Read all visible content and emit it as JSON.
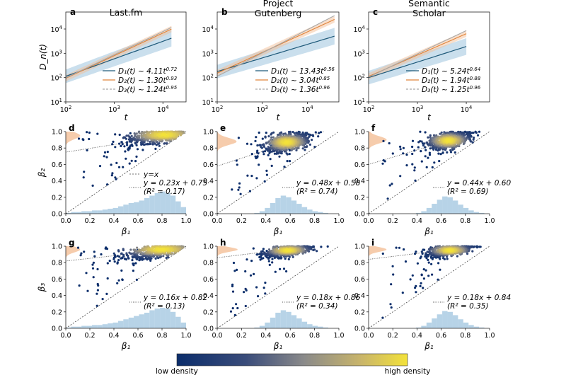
{
  "figure": {
    "colorbar": {
      "low_label": "low density",
      "high_label": "high density",
      "colors": [
        "#0b2d6b",
        "#3a4c7a",
        "#8a8a8a",
        "#c9b56a",
        "#f3e23a"
      ]
    },
    "colors": {
      "D1": "#1f5a7a",
      "D2": "#e0843a",
      "D3": "#a8a8a8",
      "band_blue": "#9fc4df",
      "band_orange": "#f4bf97",
      "hist_blue": "#9fc4df",
      "hist_orange": "#f4bf97"
    }
  },
  "chart_data": [
    {
      "type": "line",
      "panel": "a",
      "title": "Last.fm",
      "ylabel": "D_n(t)",
      "xlabel": "t",
      "xscale": "log",
      "yscale": "log",
      "xlim": [
        100,
        30000
      ],
      "ylim": [
        10,
        50000
      ],
      "x_ticks": [
        "10^2",
        "10^3",
        "10^4"
      ],
      "y_ticks": [
        "10^1",
        "10^2",
        "10^3",
        "10^4"
      ],
      "x_range": [
        100,
        15000
      ],
      "series": [
        {
          "key": "D1",
          "legend": "D₁(t) ~ 4.11t^0.72",
          "a": 4.11,
          "b": 0.72
        },
        {
          "key": "D2",
          "legend": "D₂(t) ~ 1.30t^0.93",
          "a": 1.3,
          "b": 0.93
        },
        {
          "key": "D3",
          "legend": "D₃(t) ~ 1.24t^0.95",
          "a": 1.24,
          "b": 0.95
        }
      ]
    },
    {
      "type": "line",
      "panel": "b",
      "title_lines": [
        "Project",
        "Gutenberg"
      ],
      "xlabel": "t",
      "xscale": "log",
      "yscale": "log",
      "xlim": [
        100,
        50000
      ],
      "ylim": [
        10,
        50000
      ],
      "x_ticks": [
        "10^2",
        "10^3",
        "10^4"
      ],
      "y_ticks": [
        "10^1",
        "10^2",
        "10^3",
        "10^4"
      ],
      "x_range": [
        100,
        40000
      ],
      "series": [
        {
          "key": "D1",
          "legend": "D₁(t) ~ 13.43t^0.56",
          "a": 13.43,
          "b": 0.56
        },
        {
          "key": "D2",
          "legend": "D₂(t) ~ 3.04t^0.85",
          "a": 3.04,
          "b": 0.85
        },
        {
          "key": "D3",
          "legend": "D₃(t) ~ 1.36t^0.96",
          "a": 1.36,
          "b": 0.96
        }
      ]
    },
    {
      "type": "line",
      "panel": "c",
      "title_lines": [
        "Semantic",
        "Scholar"
      ],
      "xlabel": "t",
      "xscale": "log",
      "yscale": "log",
      "xlim": [
        100,
        30000
      ],
      "ylim": [
        10,
        50000
      ],
      "x_ticks": [
        "10^2",
        "10^3",
        "10^4"
      ],
      "y_ticks": [
        "10^1",
        "10^2",
        "10^3",
        "10^4"
      ],
      "x_range": [
        100,
        10000
      ],
      "series": [
        {
          "key": "D1",
          "legend": "D₁(t) ~ 5.24t^0.64",
          "a": 5.24,
          "b": 0.64
        },
        {
          "key": "D2",
          "legend": "D₂(t) ~ 1.94t^0.88",
          "a": 1.94,
          "b": 0.88
        },
        {
          "key": "D3",
          "legend": "D₃(t) ~ 1.25t^0.96",
          "a": 1.25,
          "b": 0.96
        }
      ]
    },
    {
      "type": "scatter",
      "panel": "d",
      "ylabel": "β₂",
      "xlabel": "β₁",
      "xlim": [
        0,
        1
      ],
      "ylim": [
        0,
        1
      ],
      "x_ticks": [
        "0.0",
        "0.2",
        "0.4",
        "0.6",
        "0.8",
        "1.0"
      ],
      "y_ticks": [
        "0.0",
        "0.2",
        "0.4",
        "0.6",
        "0.8",
        "1.0"
      ],
      "fit": {
        "slope": 0.23,
        "intercept": 0.75
      },
      "fit_label": "y = 0.23x + 0.75",
      "r2_label": "(R² = 0.17)",
      "diag_label": "y=x",
      "cluster": {
        "cx": 0.82,
        "cy": 0.96,
        "sx": 0.15,
        "sy": 0.05
      },
      "hist_x": [
        0.01,
        0.02,
        0.02,
        0.03,
        0.03,
        0.04,
        0.04,
        0.05,
        0.06,
        0.07,
        0.09,
        0.11,
        0.13,
        0.14,
        0.16,
        0.19,
        0.22,
        0.25,
        0.27,
        0.25,
        0.22,
        0.15,
        0.08
      ],
      "hist_y_profile": {
        "center": 0.95,
        "width": 0.06,
        "height": 0.12
      }
    },
    {
      "type": "scatter",
      "panel": "e",
      "xlabel": "β₁",
      "xlim": [
        0,
        1
      ],
      "ylim": [
        0,
        1
      ],
      "x_ticks": [
        "0.0",
        "0.2",
        "0.4",
        "0.6",
        "0.8",
        "1.0"
      ],
      "y_ticks": [
        "0.0",
        "0.2",
        "0.4",
        "0.6",
        "0.8",
        "1.0"
      ],
      "fit": {
        "slope": 0.48,
        "intercept": 0.58
      },
      "fit_label": "y = 0.48x + 0.58",
      "r2_label": "(R² = 0.74)",
      "cluster": {
        "cx": 0.57,
        "cy": 0.87,
        "sx": 0.09,
        "sy": 0.055
      },
      "hist_x": [
        0,
        0,
        0,
        0,
        0,
        0,
        0,
        0.01,
        0.03,
        0.07,
        0.13,
        0.19,
        0.22,
        0.2,
        0.16,
        0.12,
        0.08,
        0.05,
        0.03,
        0.02,
        0.01,
        0,
        0
      ],
      "hist_y_profile": {
        "center": 0.88,
        "width": 0.06,
        "height": 0.16
      }
    },
    {
      "type": "scatter",
      "panel": "f",
      "xlabel": "β₁",
      "xlim": [
        0,
        1
      ],
      "ylim": [
        0,
        1
      ],
      "x_ticks": [
        "0.0",
        "0.2",
        "0.4",
        "0.6",
        "0.8",
        "1.0"
      ],
      "y_ticks": [
        "0.0",
        "0.2",
        "0.4",
        "0.6",
        "0.8",
        "1.0"
      ],
      "fit": {
        "slope": 0.44,
        "intercept": 0.6
      },
      "fit_label": "y = 0.44x + 0.60",
      "r2_label": "(R² = 0.69)",
      "cluster": {
        "cx": 0.66,
        "cy": 0.89,
        "sx": 0.085,
        "sy": 0.05
      },
      "hist_x": [
        0,
        0,
        0,
        0,
        0,
        0,
        0,
        0,
        0,
        0.01,
        0.03,
        0.07,
        0.12,
        0.17,
        0.21,
        0.2,
        0.16,
        0.11,
        0.07,
        0.04,
        0.02,
        0.01,
        0
      ],
      "hist_y_profile": {
        "center": 0.9,
        "width": 0.06,
        "height": 0.15
      }
    },
    {
      "type": "scatter",
      "panel": "g",
      "ylabel": "β₃",
      "xlabel": "β₁",
      "xlim": [
        0,
        1
      ],
      "ylim": [
        0,
        1
      ],
      "x_ticks": [
        "0.0",
        "0.2",
        "0.4",
        "0.6",
        "0.8",
        "1.0"
      ],
      "y_ticks": [
        "0.0",
        "0.2",
        "0.4",
        "0.6",
        "0.8",
        "1.0"
      ],
      "fit": {
        "slope": 0.16,
        "intercept": 0.82
      },
      "fit_label": "y = 0.16x + 0.82",
      "r2_label": "(R² = 0.13)",
      "cluster": {
        "cx": 0.8,
        "cy": 0.96,
        "sx": 0.16,
        "sy": 0.045
      },
      "hist_x": [
        0.01,
        0.02,
        0.02,
        0.03,
        0.03,
        0.04,
        0.04,
        0.05,
        0.06,
        0.07,
        0.09,
        0.11,
        0.13,
        0.15,
        0.17,
        0.19,
        0.22,
        0.24,
        0.25,
        0.24,
        0.2,
        0.14,
        0.07
      ],
      "hist_y_profile": {
        "center": 0.96,
        "width": 0.05,
        "height": 0.12
      }
    },
    {
      "type": "scatter",
      "panel": "h",
      "xlabel": "β₁",
      "xlim": [
        0,
        1
      ],
      "ylim": [
        0,
        1
      ],
      "x_ticks": [
        "0.0",
        "0.2",
        "0.4",
        "0.6",
        "0.8",
        "1.0"
      ],
      "y_ticks": [
        "0.0",
        "0.2",
        "0.4",
        "0.6",
        "0.8",
        "1.0"
      ],
      "fit": {
        "slope": 0.18,
        "intercept": 0.86
      },
      "fit_label": "y = 0.18x + 0.86",
      "r2_label": "(R² = 0.34)",
      "cluster": {
        "cx": 0.58,
        "cy": 0.95,
        "sx": 0.09,
        "sy": 0.035
      },
      "hist_x": [
        0,
        0,
        0,
        0,
        0,
        0,
        0,
        0.01,
        0.03,
        0.07,
        0.13,
        0.19,
        0.22,
        0.2,
        0.16,
        0.12,
        0.08,
        0.05,
        0.03,
        0.02,
        0.01,
        0,
        0
      ],
      "hist_y_profile": {
        "center": 0.96,
        "width": 0.04,
        "height": 0.17
      }
    },
    {
      "type": "scatter",
      "panel": "i",
      "xlabel": "β₁",
      "xlim": [
        0,
        1
      ],
      "ylim": [
        0,
        1
      ],
      "x_ticks": [
        "0.0",
        "0.2",
        "0.4",
        "0.6",
        "0.8",
        "1.0"
      ],
      "y_ticks": [
        "0.0",
        "0.2",
        "0.4",
        "0.6",
        "0.8",
        "1.0"
      ],
      "fit": {
        "slope": 0.18,
        "intercept": 0.84
      },
      "fit_label": "y = 0.18x + 0.84",
      "r2_label": "(R² = 0.35)",
      "cluster": {
        "cx": 0.67,
        "cy": 0.95,
        "sx": 0.085,
        "sy": 0.035
      },
      "hist_x": [
        0,
        0,
        0,
        0,
        0,
        0,
        0,
        0,
        0,
        0.01,
        0.03,
        0.07,
        0.12,
        0.17,
        0.21,
        0.2,
        0.16,
        0.11,
        0.07,
        0.04,
        0.02,
        0.01,
        0
      ],
      "hist_y_profile": {
        "center": 0.96,
        "width": 0.04,
        "height": 0.15
      }
    }
  ]
}
